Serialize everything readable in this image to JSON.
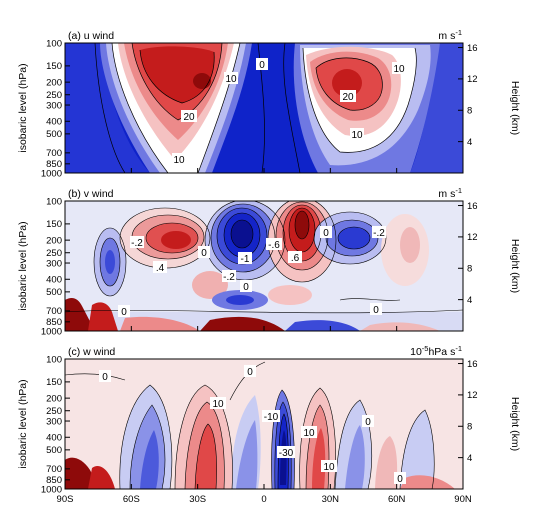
{
  "chart_data": [
    {
      "type": "heatmap",
      "title": "(a) u wind",
      "units": "m s",
      "units_sup": "-1",
      "ylabel": "isobaric level (hPa)",
      "ylabel_right": "Height (km)",
      "y_ticks": [
        "100",
        "150",
        "200",
        "250",
        "300",
        "400",
        "500",
        "700",
        "850",
        "1000"
      ],
      "y_right_ticks": [
        "16",
        "12",
        "8",
        "4"
      ],
      "contour_labels": [
        "0",
        "10",
        "20",
        "20",
        "10",
        "10",
        "20",
        "10"
      ],
      "palette": {
        "negative": "#0a1fc8",
        "positive": "#c01010"
      }
    },
    {
      "type": "heatmap",
      "title": "(b) v wind",
      "units": "m s",
      "units_sup": "-1",
      "ylabel": "isobaric level (hPa)",
      "ylabel_right": "Height (km)",
      "y_ticks": [
        "100",
        "150",
        "200",
        "250",
        "300",
        "400",
        "500",
        "700",
        "850",
        "1000"
      ],
      "y_right_ticks": [
        "16",
        "12",
        "8",
        "4"
      ],
      "contour_labels": [
        "-.2",
        ".4",
        "0",
        "-1",
        "-.6",
        ".6",
        "0",
        "-.2",
        "-.2",
        "0",
        "-.2",
        "0"
      ]
    },
    {
      "type": "heatmap",
      "title": "(c) w wind",
      "units": "10",
      "units_sup": "-5",
      "units_tail": "hPa s",
      "units_sup2": "-1",
      "ylabel": "isobaric level (hPa)",
      "ylabel_right": "Height (km)",
      "y_ticks": [
        "100",
        "150",
        "200",
        "250",
        "300",
        "400",
        "500",
        "700",
        "850",
        "1000"
      ],
      "y_right_ticks": [
        "16",
        "12",
        "8",
        "4"
      ],
      "x_ticks": [
        "90S",
        "60S",
        "30S",
        "0",
        "30N",
        "60N",
        "90N"
      ],
      "contour_labels": [
        "0",
        "0",
        "10",
        "-10",
        "-30",
        "10",
        "10",
        "0",
        "0"
      ]
    }
  ]
}
